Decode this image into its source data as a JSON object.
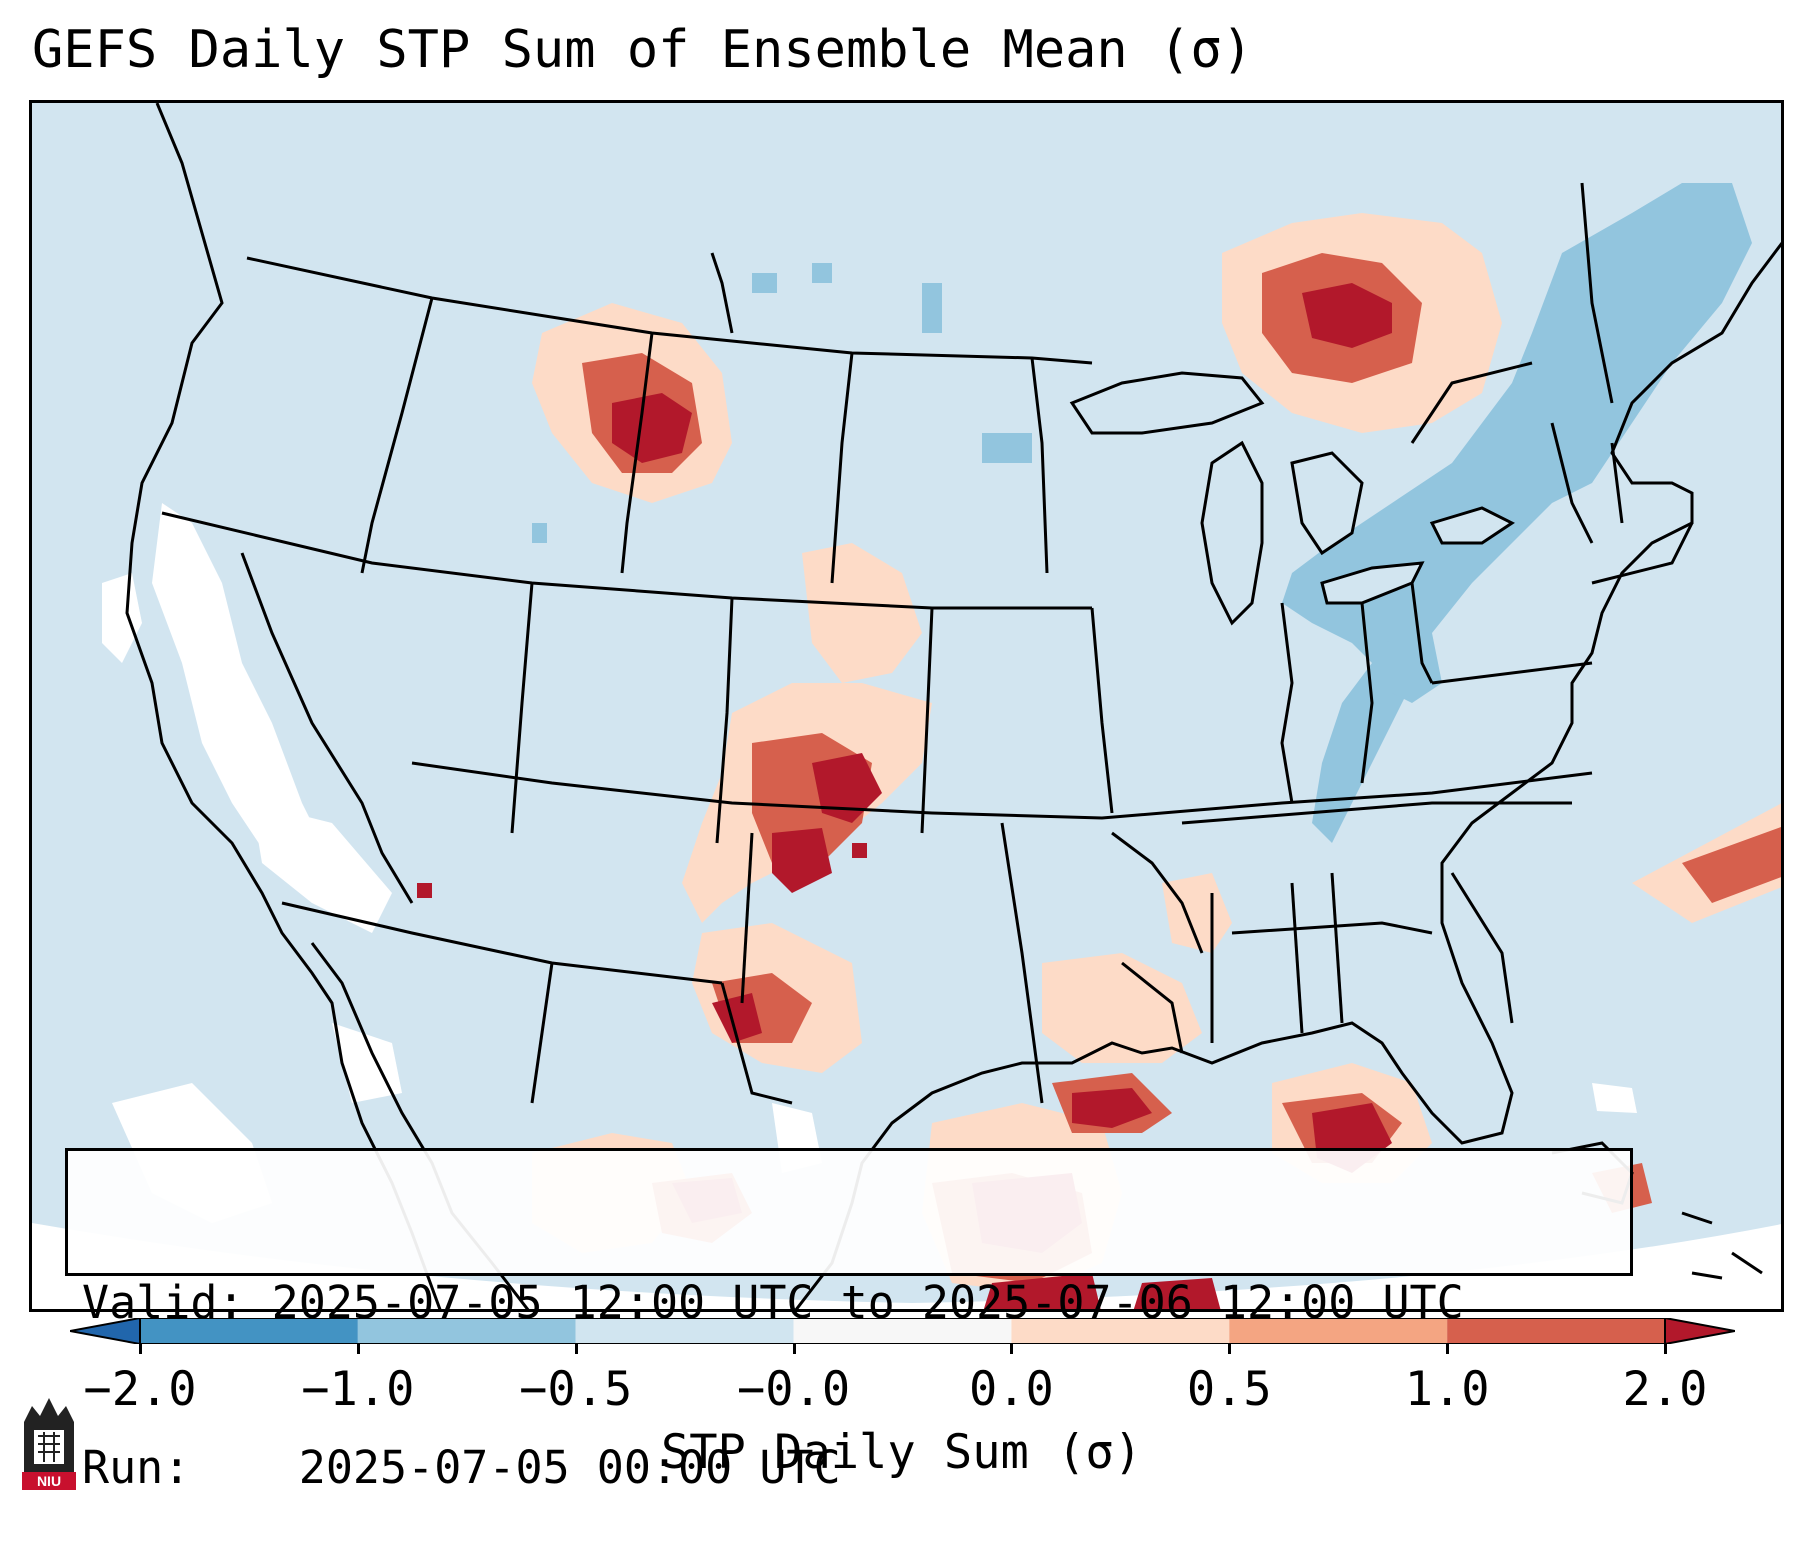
{
  "title": "GEFS Daily STP Sum of Ensemble Mean (σ)",
  "map": {
    "region": "Contiguous United States",
    "colors": {
      "ocean": "#d2e5f0",
      "land": "#d2e5f0",
      "border": "#000000"
    }
  },
  "info_box": {
    "valid_label": "Valid:",
    "valid_value": "2025-07-05 12:00 UTC to 2025-07-06 12:00 UTC",
    "run_label": "Run:",
    "run_value": "2025-07-05 00:00 UTC"
  },
  "colorbar": {
    "label": "STP Daily Sum (σ)",
    "ticks": [
      "−2.0",
      "−1.0",
      "−0.5",
      "−0.0",
      "0.0",
      "0.5",
      "1.0",
      "2.0"
    ],
    "colors": [
      "#2166ac",
      "#4393c3",
      "#92c5de",
      "#d1e5f0",
      "#f7f7f7",
      "#fddbc7",
      "#f4a582",
      "#d6604d",
      "#b2182b"
    ],
    "extend": "both"
  },
  "logo": {
    "text": "NIU",
    "icon": "niu-logo-icon"
  }
}
